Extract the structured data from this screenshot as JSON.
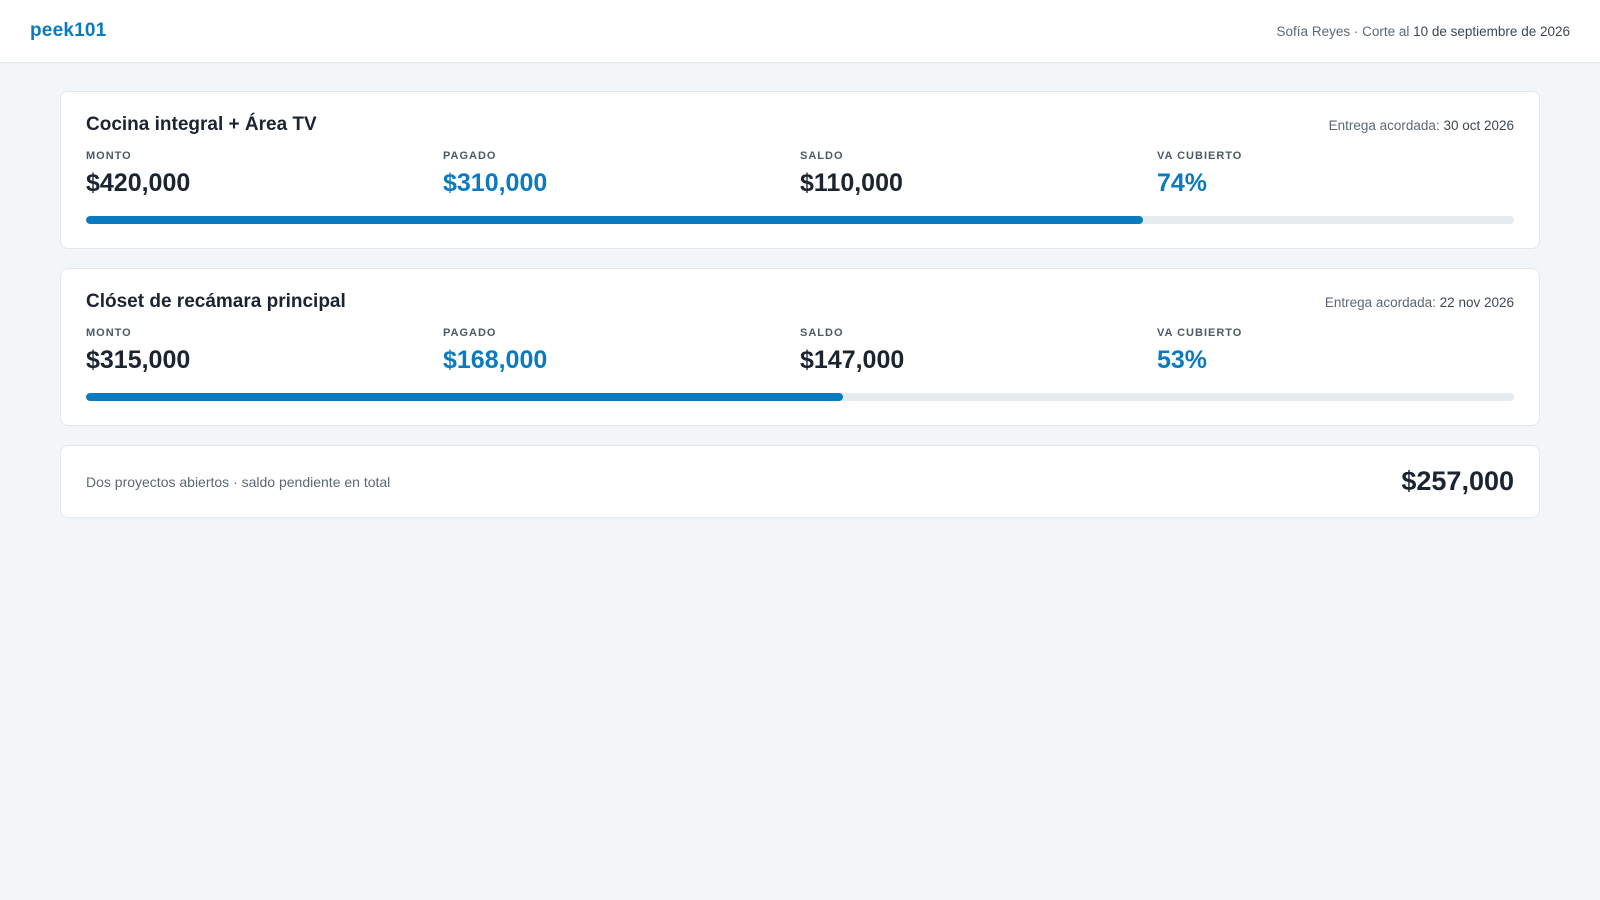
{
  "header": {
    "logo": "peek101",
    "user": "Sofía Reyes",
    "separator": " · ",
    "cutoff_prefix": "Corte al ",
    "cutoff_date": "10 de septiembre de 2026"
  },
  "projects": [
    {
      "title": "Cocina integral + Área TV",
      "delivery_label": "Entrega acordada: ",
      "delivery_date": "30 oct 2026",
      "metrics": [
        {
          "label": "MONTO",
          "value": "$420,000"
        },
        {
          "label": "PAGADO",
          "value": "$310,000"
        },
        {
          "label": "SALDO",
          "value": "$110,000"
        },
        {
          "label": "VA CUBIERTO",
          "value": "74%"
        }
      ],
      "progress_percent": 74
    },
    {
      "title": "Clóset de recámara principal",
      "delivery_label": "Entrega acordada: ",
      "delivery_date": "22 nov 2026",
      "metrics": [
        {
          "label": "MONTO",
          "value": "$315,000"
        },
        {
          "label": "PAGADO",
          "value": "$168,000"
        },
        {
          "label": "SALDO",
          "value": "$147,000"
        },
        {
          "label": "VA CUBIERTO",
          "value": "53%"
        }
      ],
      "progress_percent": 53
    }
  ],
  "summary": {
    "text": "Dos proyectos abiertos · saldo pendiente en total",
    "total": "$257,000"
  },
  "colors": {
    "accent": "#0a7bc1",
    "background": "#f3f6f9",
    "track": "#e6ebf0"
  }
}
